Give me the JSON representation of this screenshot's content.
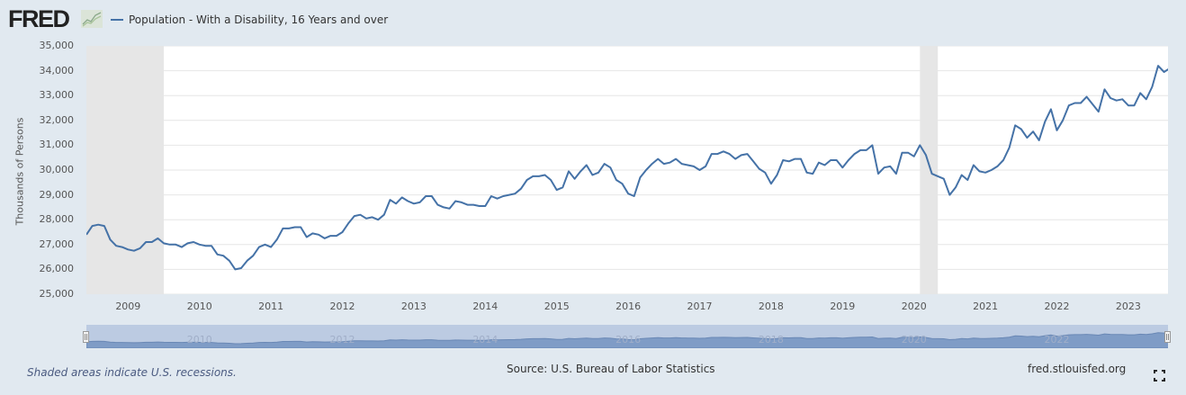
{
  "header": {
    "logo_text": "FRED",
    "logo_icon": "fred-chart-icon",
    "legend_label": "Population - With a Disability, 16 Years and over",
    "legend_color": "#4572a7"
  },
  "footer": {
    "recession_note": "Shaded areas indicate U.S. recessions.",
    "source": "Source: U.S. Bureau of Labor Statistics",
    "site": "fred.stlouisfed.org",
    "fullscreen_icon": "fullscreen-icon"
  },
  "colors": {
    "background": "#e1e9f0",
    "plot_background": "#ffffff",
    "line": "#4572a7",
    "recession": "#e6e6e6",
    "gridline": "#e6e6e6",
    "navigator": "#bccbe2",
    "navigator_series": "#7f9cc6"
  },
  "chart_data": {
    "type": "line",
    "title": "Population - With a Disability, 16 Years and over",
    "xlabel": "",
    "ylabel": "Thousands of Persons",
    "ylim": [
      25000,
      35000
    ],
    "grid": true,
    "legend_position": "top-left",
    "y_ticks": [
      "25,000",
      "26,000",
      "27,000",
      "28,000",
      "29,000",
      "30,000",
      "31,000",
      "32,000",
      "33,000",
      "34,000",
      "35,000"
    ],
    "x_ticks": [
      "2009",
      "2010",
      "2011",
      "2012",
      "2013",
      "2014",
      "2015",
      "2016",
      "2017",
      "2018",
      "2019",
      "2020",
      "2021",
      "2022",
      "2023"
    ],
    "navigator_labels": [
      "2010",
      "2012",
      "2014",
      "2016",
      "2018",
      "2020",
      "2022"
    ],
    "x_start": "2008-06",
    "x_end": "2023-08",
    "frequency": "monthly",
    "recessions": [
      {
        "start": "2008-06",
        "end": "2009-06"
      },
      {
        "start": "2020-02",
        "end": "2020-04"
      }
    ],
    "series": [
      {
        "name": "Population - With a Disability, 16 Years and over",
        "values": [
          27400,
          27750,
          27800,
          27750,
          27200,
          26950,
          26900,
          26800,
          26750,
          26850,
          27100,
          27100,
          27250,
          27050,
          27000,
          27000,
          26900,
          27050,
          27100,
          27000,
          26950,
          26950,
          26600,
          26550,
          26350,
          26000,
          26050,
          26350,
          26550,
          26900,
          27000,
          26900,
          27200,
          27650,
          27650,
          27700,
          27700,
          27300,
          27450,
          27400,
          27250,
          27350,
          27350,
          27500,
          27850,
          28150,
          28200,
          28050,
          28100,
          28000,
          28200,
          28800,
          28650,
          28900,
          28750,
          28650,
          28700,
          28950,
          28950,
          28600,
          28500,
          28450,
          28750,
          28700,
          28600,
          28600,
          28550,
          28550,
          28950,
          28850,
          28950,
          29000,
          29050,
          29250,
          29600,
          29750,
          29750,
          29800,
          29600,
          29200,
          29300,
          29950,
          29650,
          29950,
          30200,
          29800,
          29900,
          30250,
          30100,
          29600,
          29450,
          29050,
          28950,
          29700,
          30000,
          30250,
          30450,
          30250,
          30300,
          30450,
          30250,
          30200,
          30150,
          30000,
          30150,
          30650,
          30650,
          30750,
          30650,
          30450,
          30600,
          30650,
          30350,
          30050,
          29900,
          29450,
          29800,
          30400,
          30350,
          30450,
          30450,
          29900,
          29850,
          30300,
          30200,
          30400,
          30400,
          30100,
          30400,
          30650,
          30800,
          30800,
          31000,
          29850,
          30100,
          30150,
          29850,
          30700,
          30700,
          30550,
          31000,
          30600,
          29850,
          29750,
          29650,
          29000,
          29300,
          29800,
          29600,
          30200,
          29950,
          29900,
          30000,
          30150,
          30400,
          30900,
          31800,
          31650,
          31300,
          31550,
          31200,
          31950,
          32450,
          31600,
          32000,
          32600,
          32700,
          32700,
          32950,
          32650,
          32350,
          33250,
          32900,
          32800,
          32850,
          32600,
          32600,
          33100,
          32850,
          33350,
          34200,
          33950,
          34100
        ]
      }
    ]
  }
}
